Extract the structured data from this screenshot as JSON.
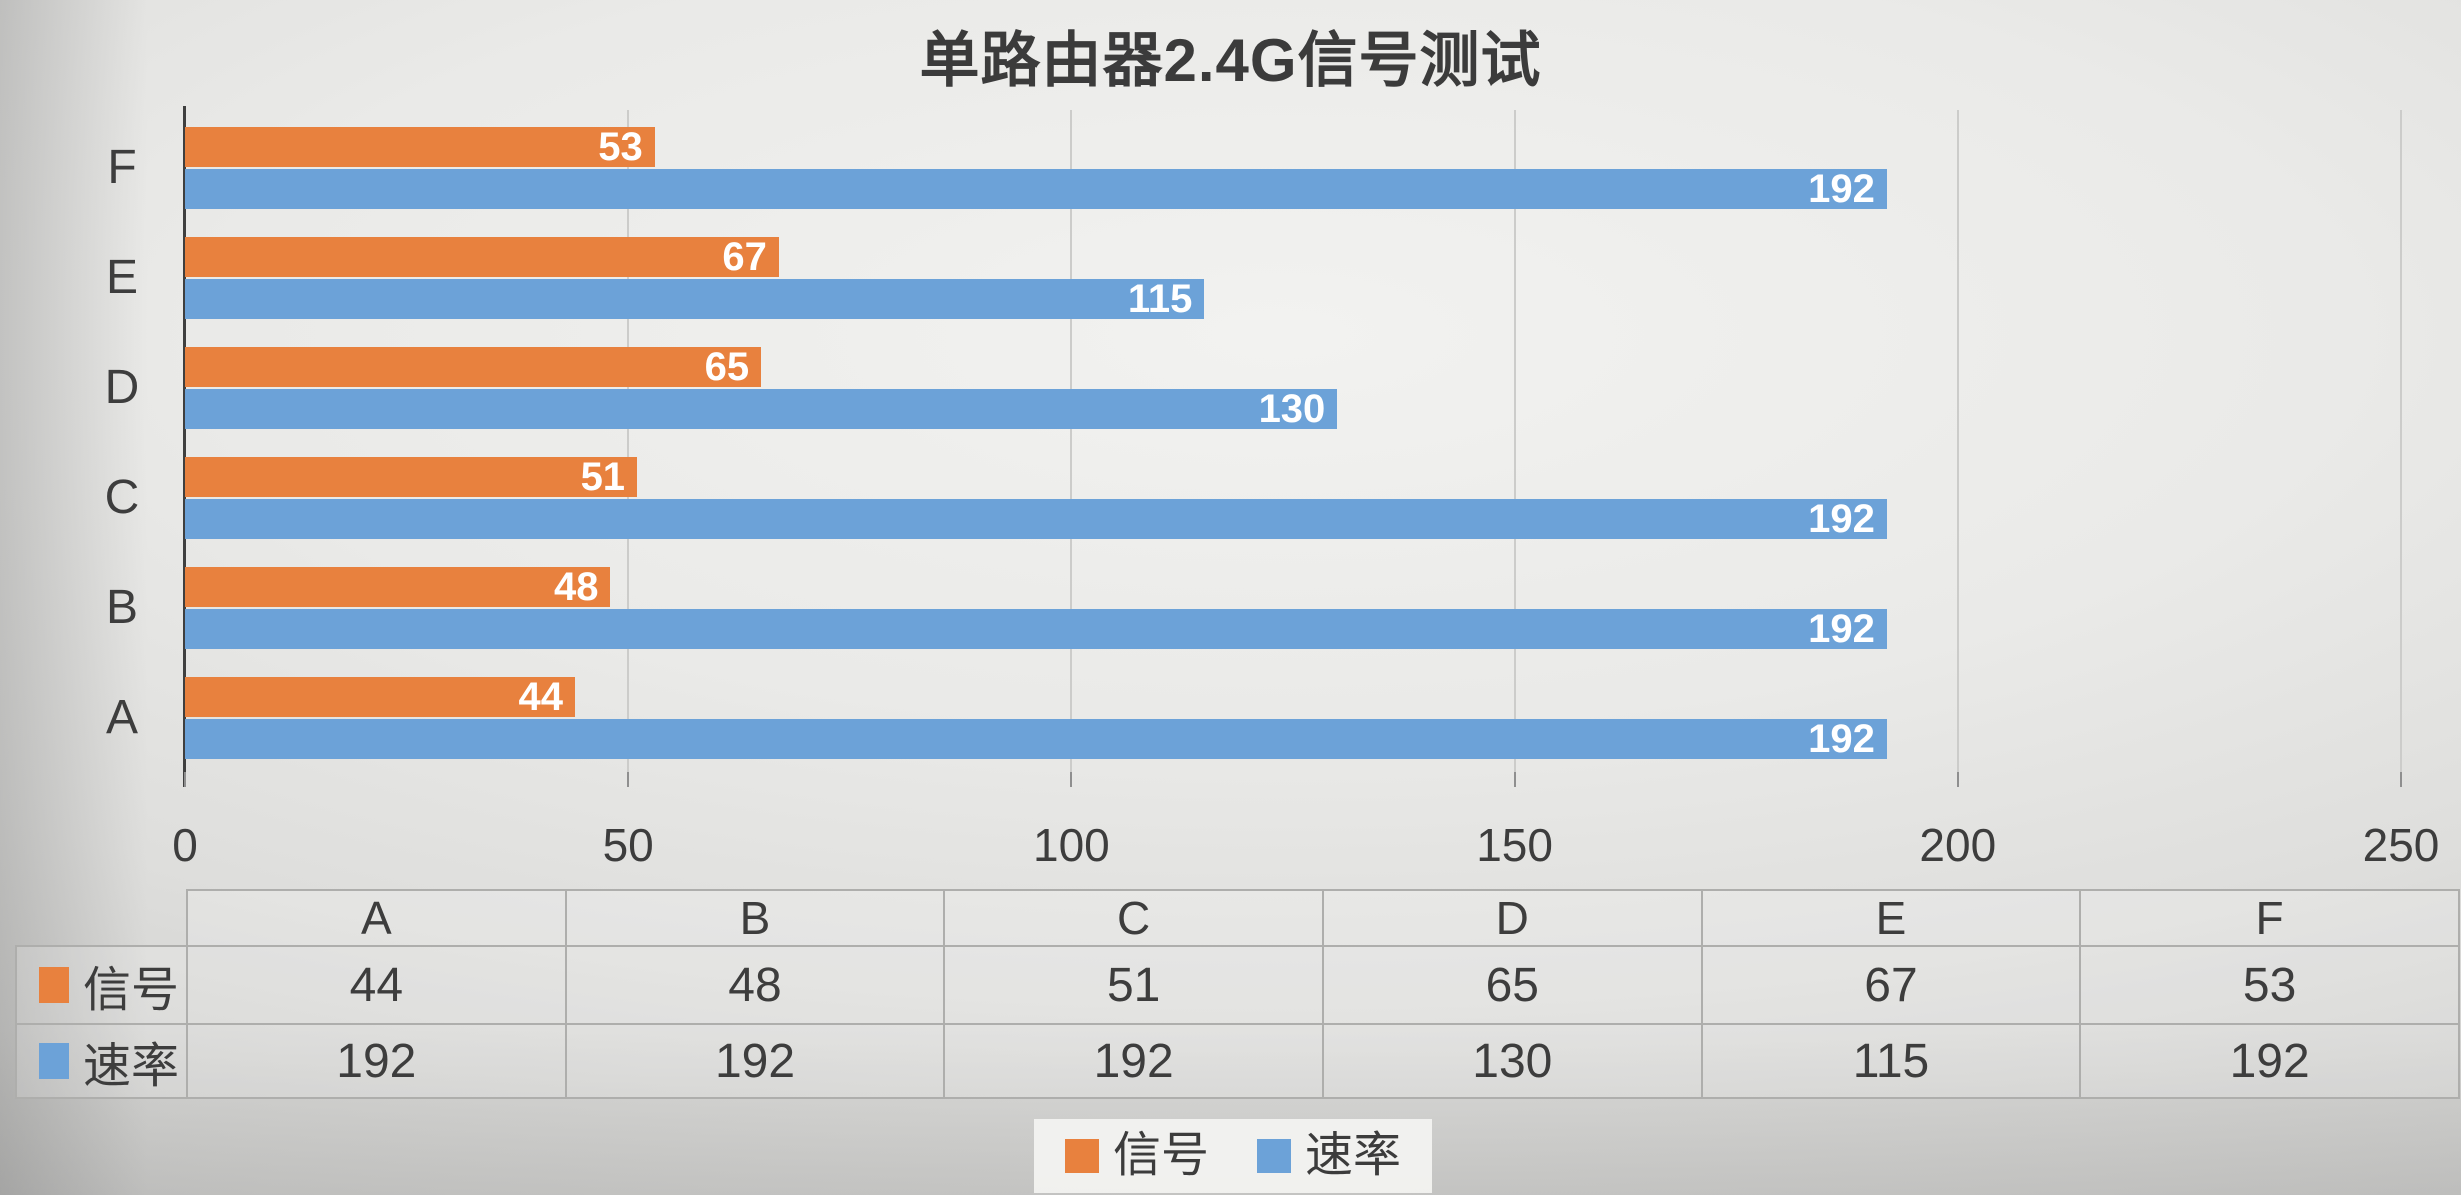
{
  "title": "单路由器2.4G信号测试",
  "chart_data": {
    "type": "bar",
    "orientation": "horizontal",
    "title": "单路由器2.4G信号测试",
    "categories": [
      "A",
      "B",
      "C",
      "D",
      "E",
      "F"
    ],
    "series": [
      {
        "name": "信号",
        "color": "#E8813E",
        "values": [
          44,
          48,
          51,
          65,
          67,
          53
        ]
      },
      {
        "name": "速率",
        "color": "#6CA2D8",
        "values": [
          192,
          192,
          192,
          130,
          115,
          192
        ]
      }
    ],
    "xlim": [
      0,
      250
    ],
    "xticks": [
      0,
      50,
      100,
      150,
      200,
      250
    ],
    "grid": true,
    "category_axis_order_top_to_bottom": [
      "F",
      "E",
      "D",
      "C",
      "B",
      "A"
    ],
    "value_labels_position": "inside-end",
    "legend_position": "bottom-center",
    "data_table_shown": true
  },
  "table": {
    "column_headers": [
      "A",
      "B",
      "C",
      "D",
      "E",
      "F"
    ],
    "rows": [
      {
        "label": "信号",
        "swatch_color": "#E8813E",
        "values": [
          "44",
          "48",
          "51",
          "65",
          "67",
          "53"
        ]
      },
      {
        "label": "速率",
        "swatch_color": "#6CA2D8",
        "values": [
          "192",
          "192",
          "192",
          "130",
          "115",
          "192"
        ]
      }
    ]
  },
  "legend": {
    "items": [
      {
        "label": "信号",
        "color": "#E8813E"
      },
      {
        "label": "速率",
        "color": "#6CA2D8"
      }
    ]
  },
  "colors": {
    "signal": "#E8813E",
    "rate": "#6CA2D8",
    "text": "#3C3C3C",
    "bar_value_label": "#FFFFFF",
    "gridline": "#CCCCCA",
    "axis_line": "#3F3F3F",
    "table_border": "#AEAEAC"
  }
}
